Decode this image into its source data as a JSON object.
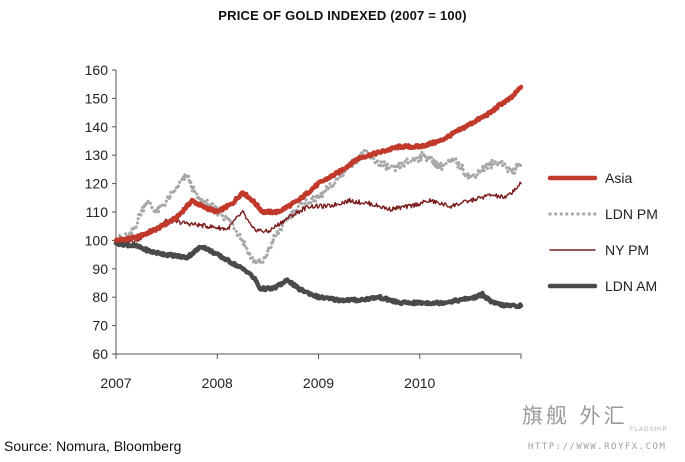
{
  "chart_data": {
    "type": "line",
    "title": "PRICE OF GOLD INDEXED (2007 = 100)",
    "xlabel": "",
    "ylabel": "",
    "xlim": [
      2007,
      2011
    ],
    "ylim": [
      60,
      160
    ],
    "x_ticks": [
      "2007",
      "2008",
      "2009",
      "2010"
    ],
    "y_ticks": [
      60,
      70,
      80,
      90,
      100,
      110,
      120,
      130,
      140,
      150,
      160
    ],
    "grid": false,
    "legend_position": "right",
    "series": [
      {
        "name": "Asia",
        "color": "#c0392b",
        "style": "solid-thick",
        "points": [
          [
            2007.0,
            100
          ],
          [
            2007.2,
            101
          ],
          [
            2007.4,
            104
          ],
          [
            2007.6,
            108
          ],
          [
            2007.75,
            114
          ],
          [
            2007.85,
            112
          ],
          [
            2008.0,
            110
          ],
          [
            2008.15,
            113
          ],
          [
            2008.25,
            117
          ],
          [
            2008.35,
            114
          ],
          [
            2008.45,
            110
          ],
          [
            2008.6,
            110
          ],
          [
            2008.8,
            114
          ],
          [
            2009.0,
            120
          ],
          [
            2009.2,
            124
          ],
          [
            2009.4,
            129
          ],
          [
            2009.6,
            131
          ],
          [
            2009.8,
            133
          ],
          [
            2010.0,
            133
          ],
          [
            2010.2,
            135
          ],
          [
            2010.4,
            139
          ],
          [
            2010.55,
            142
          ],
          [
            2010.7,
            145
          ],
          [
            2010.8,
            148
          ],
          [
            2010.9,
            150
          ],
          [
            2011.0,
            154
          ]
        ]
      },
      {
        "name": "LDN PM",
        "color": "#a8a8a8",
        "style": "dotted",
        "points": [
          [
            2007.0,
            100
          ],
          [
            2007.15,
            102
          ],
          [
            2007.3,
            114
          ],
          [
            2007.4,
            110
          ],
          [
            2007.55,
            116
          ],
          [
            2007.7,
            123
          ],
          [
            2007.8,
            115
          ],
          [
            2007.9,
            113
          ],
          [
            2008.05,
            109
          ],
          [
            2008.15,
            106
          ],
          [
            2008.25,
            100
          ],
          [
            2008.35,
            93
          ],
          [
            2008.45,
            92
          ],
          [
            2008.55,
            100
          ],
          [
            2008.7,
            108
          ],
          [
            2008.85,
            113
          ],
          [
            2009.0,
            115
          ],
          [
            2009.15,
            120
          ],
          [
            2009.3,
            126
          ],
          [
            2009.45,
            131
          ],
          [
            2009.6,
            127
          ],
          [
            2009.75,
            125
          ],
          [
            2009.9,
            128
          ],
          [
            2010.05,
            130
          ],
          [
            2010.2,
            126
          ],
          [
            2010.35,
            128
          ],
          [
            2010.5,
            122
          ],
          [
            2010.65,
            126
          ],
          [
            2010.8,
            128
          ],
          [
            2010.9,
            124
          ],
          [
            2011.0,
            127
          ]
        ]
      },
      {
        "name": "NY PM",
        "color": "#7a1a1a",
        "style": "solid-thin",
        "points": [
          [
            2007.0,
            100
          ],
          [
            2007.2,
            100
          ],
          [
            2007.35,
            103
          ],
          [
            2007.5,
            107
          ],
          [
            2007.7,
            106
          ],
          [
            2007.9,
            105
          ],
          [
            2008.1,
            104
          ],
          [
            2008.25,
            110
          ],
          [
            2008.35,
            104
          ],
          [
            2008.5,
            103
          ],
          [
            2008.7,
            108
          ],
          [
            2008.9,
            112
          ],
          [
            2009.1,
            112
          ],
          [
            2009.3,
            114
          ],
          [
            2009.5,
            113
          ],
          [
            2009.7,
            111
          ],
          [
            2009.9,
            112
          ],
          [
            2010.1,
            114
          ],
          [
            2010.3,
            112
          ],
          [
            2010.5,
            114
          ],
          [
            2010.7,
            116
          ],
          [
            2010.85,
            115
          ],
          [
            2011.0,
            120
          ]
        ]
      },
      {
        "name": "LDN AM",
        "color": "#4a4a4a",
        "style": "solid-thick",
        "points": [
          [
            2007.0,
            99
          ],
          [
            2007.2,
            98
          ],
          [
            2007.35,
            96
          ],
          [
            2007.5,
            95
          ],
          [
            2007.7,
            94
          ],
          [
            2007.85,
            98
          ],
          [
            2008.0,
            95
          ],
          [
            2008.15,
            92
          ],
          [
            2008.3,
            89
          ],
          [
            2008.38,
            86
          ],
          [
            2008.42,
            83
          ],
          [
            2008.55,
            83
          ],
          [
            2008.7,
            86
          ],
          [
            2008.8,
            83
          ],
          [
            2009.0,
            80
          ],
          [
            2009.2,
            79
          ],
          [
            2009.4,
            79
          ],
          [
            2009.6,
            80
          ],
          [
            2009.8,
            78
          ],
          [
            2010.0,
            78
          ],
          [
            2010.2,
            78
          ],
          [
            2010.4,
            79
          ],
          [
            2010.55,
            80
          ],
          [
            2010.62,
            81
          ],
          [
            2010.72,
            78
          ],
          [
            2010.85,
            77
          ],
          [
            2011.0,
            77
          ]
        ]
      }
    ]
  },
  "source": "Source: Nomura, Bloomberg",
  "watermark": {
    "main": "旗舰 外汇",
    "sub": "FLAGSHIP",
    "url": "HTTP://WWW.ROYFX.COM"
  }
}
